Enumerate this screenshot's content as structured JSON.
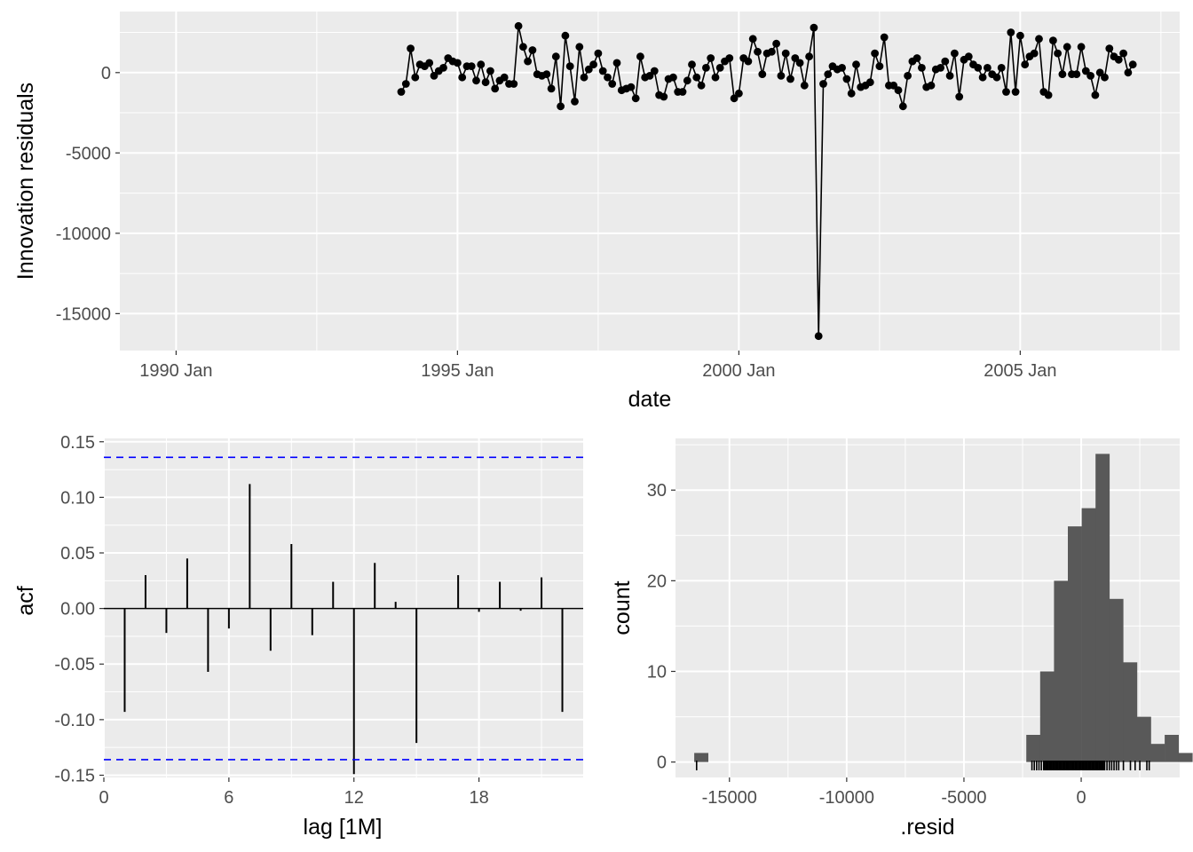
{
  "chart_data": [
    {
      "type": "line",
      "xlabel": "date",
      "ylabel": "Innovation residuals",
      "x_ticks": [
        "1990 Jan",
        "1995 Jan",
        "2000 Jan",
        "2005 Jan"
      ],
      "y_ticks": [
        "-15000",
        "-10000",
        "-5000",
        "0"
      ],
      "xlim": [
        "1989 Jan",
        "2007 Nov"
      ],
      "ylim": [
        -17300,
        3800
      ],
      "grid": true,
      "series": [
        {
          "start": "1994 Jan",
          "frequency": "monthly",
          "values": [
            -1200,
            -700,
            1500,
            -300,
            500,
            400,
            600,
            -200,
            100,
            300,
            900,
            700,
            600,
            -300,
            400,
            400,
            -500,
            500,
            -600,
            100,
            -1000,
            -500,
            -300,
            -700,
            -700,
            2900,
            1600,
            700,
            1400,
            -100,
            -200,
            -100,
            -1000,
            1000,
            -2100,
            2300,
            400,
            -1800,
            1600,
            -300,
            200,
            500,
            1200,
            100,
            -300,
            -700,
            600,
            -1100,
            -1000,
            -900,
            -1600,
            1000,
            -300,
            -200,
            100,
            -1400,
            -1500,
            -400,
            -300,
            -1200,
            -1200,
            -500,
            500,
            -300,
            -800,
            300,
            900,
            -300,
            300,
            700,
            900,
            -1600,
            -1300,
            900,
            700,
            2100,
            1300,
            -100,
            1200,
            1300,
            1800,
            -200,
            1200,
            -400,
            900,
            600,
            -800,
            1000,
            2800,
            -16400,
            -700,
            -100,
            400,
            200,
            300,
            -400,
            -1300,
            500,
            -900,
            -800,
            -600,
            1200,
            400,
            2200,
            -800,
            -800,
            -1100,
            -2100,
            -200,
            700,
            900,
            300,
            -900,
            -800,
            200,
            300,
            700,
            -200,
            1200,
            -1500,
            800,
            1000,
            500,
            300,
            -300,
            300,
            -100,
            -300,
            300,
            -1200,
            2500,
            -1200,
            2300,
            500,
            1000,
            1200,
            2100,
            -1200,
            -1400,
            2000,
            1200,
            -100,
            1600,
            -100,
            -100,
            1600,
            100,
            -200,
            -1400,
            0,
            -300,
            1500,
            1000,
            800,
            1200,
            0,
            500
          ]
        }
      ]
    },
    {
      "type": "bar",
      "subtype": "acf",
      "xlabel": "lag [1M]",
      "ylabel": "acf",
      "x_ticks": [
        "0",
        "6",
        "12",
        "18"
      ],
      "y_ticks": [
        "-0.15",
        "-0.10",
        "-0.05",
        "0.00",
        "0.05",
        "0.10",
        "0.15"
      ],
      "xlim": [
        0,
        23
      ],
      "ylim": [
        -0.152,
        0.153
      ],
      "lags": [
        1,
        2,
        3,
        4,
        5,
        6,
        7,
        8,
        9,
        10,
        11,
        12,
        13,
        14,
        15,
        16,
        17,
        18,
        19,
        20,
        21,
        22
      ],
      "values": [
        -0.093,
        0.03,
        -0.022,
        0.045,
        -0.057,
        -0.018,
        0.112,
        -0.038,
        0.058,
        -0.024,
        0.024,
        -0.149,
        0.041,
        0.006,
        -0.121,
        0.0,
        0.03,
        -0.003,
        0.024,
        -0.002,
        0.028,
        -0.093
      ],
      "confidence_limit": 0.136,
      "confidence_color": "#0000ff",
      "grid": true
    },
    {
      "type": "bar",
      "subtype": "histogram",
      "xlabel": ".resid",
      "ylabel": "count",
      "x_ticks": [
        "-15000",
        "-10000",
        "-5000",
        "0"
      ],
      "y_ticks": [
        "0",
        "10",
        "20",
        "30"
      ],
      "xlim": [
        -17300,
        4200
      ],
      "ylim": [
        -1.7,
        35.7
      ],
      "bin_start": -16500,
      "bin_width": 590,
      "counts": [
        1,
        0,
        0,
        0,
        0,
        0,
        0,
        0,
        0,
        0,
        0,
        0,
        0,
        0,
        0,
        0,
        0,
        0,
        0,
        0,
        0,
        0,
        0,
        0,
        3,
        10,
        20,
        26,
        28,
        34,
        18,
        11,
        5,
        2,
        3,
        1
      ],
      "bar_color": "#595959",
      "rug": [
        -16400,
        -2100,
        -2000,
        -1900,
        -1800,
        -1700,
        -1600,
        -1550,
        -1500,
        -1450,
        -1400,
        -1350,
        -1300,
        -1250,
        -1200,
        -1150,
        -1100,
        -1050,
        -1000,
        -950,
        -900,
        -850,
        -800,
        -750,
        -700,
        -650,
        -600,
        -550,
        -500,
        -450,
        -400,
        -350,
        -300,
        -250,
        -200,
        -150,
        -100,
        -50,
        0,
        50,
        100,
        150,
        200,
        250,
        300,
        350,
        400,
        450,
        500,
        550,
        600,
        650,
        700,
        750,
        800,
        850,
        900,
        950,
        1000,
        1100,
        1200,
        1300,
        1400,
        1500,
        1600,
        1800,
        2100,
        2300,
        2500,
        2800,
        2900
      ],
      "grid": true
    }
  ]
}
